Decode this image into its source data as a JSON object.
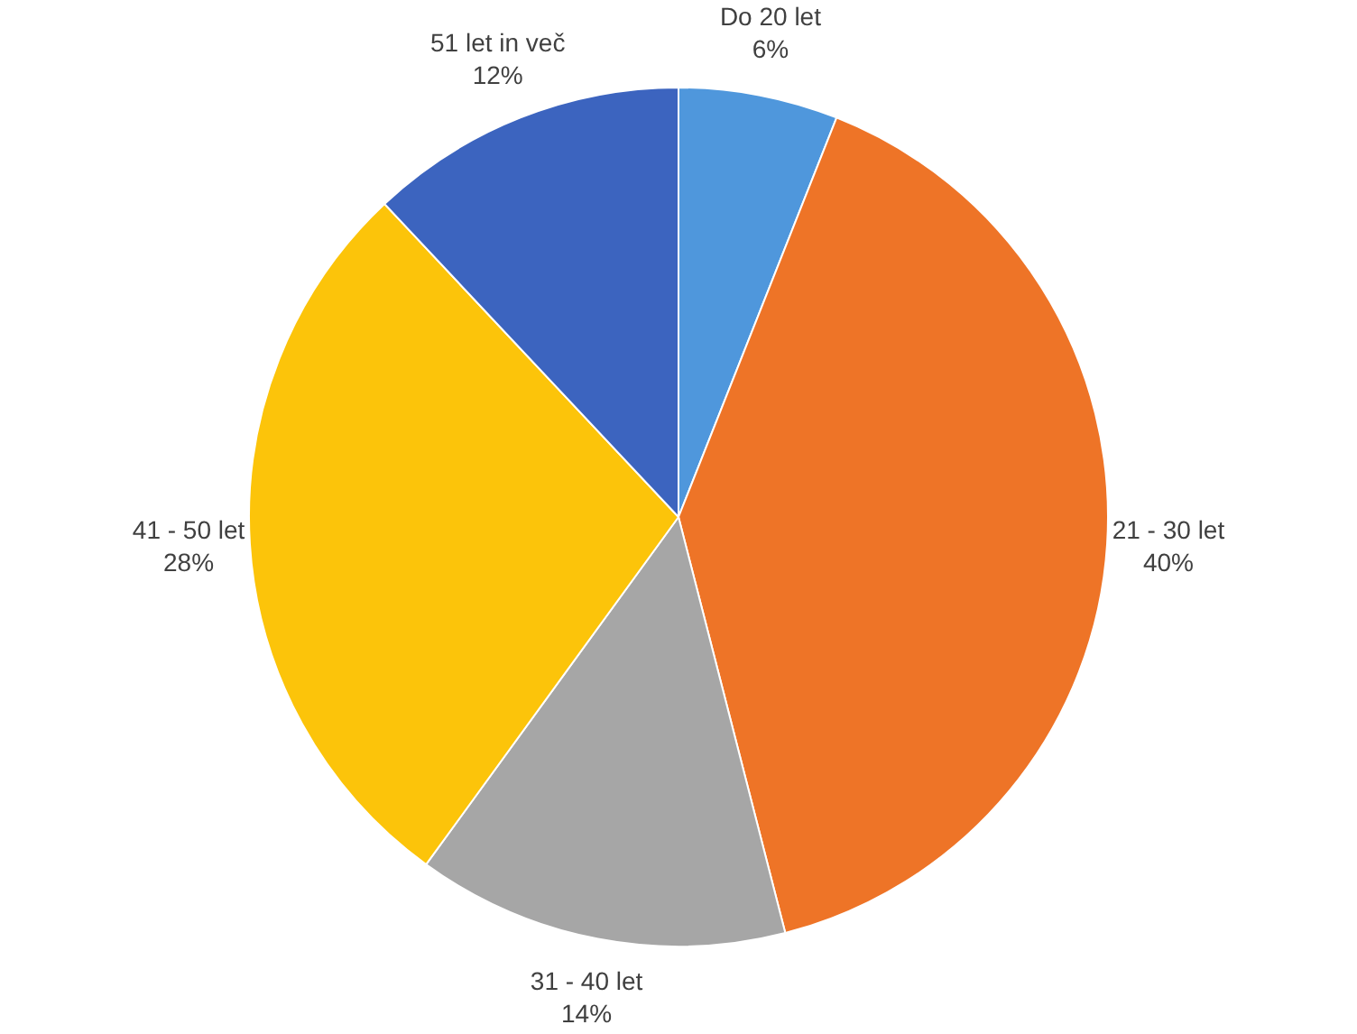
{
  "chart_data": {
    "type": "pie",
    "categories": [
      "Do 20 let",
      "21 - 30 let",
      "31 - 40 let",
      "41 - 50 let",
      "51 let in več"
    ],
    "values": [
      6,
      40,
      14,
      28,
      12
    ],
    "value_labels": [
      "6%",
      "40%",
      "14%",
      "28%",
      "12%"
    ],
    "colors": [
      "#4f97dc",
      "#ee7427",
      "#a6a6a6",
      "#fcc40a",
      "#3c64bf"
    ],
    "legend": false
  }
}
